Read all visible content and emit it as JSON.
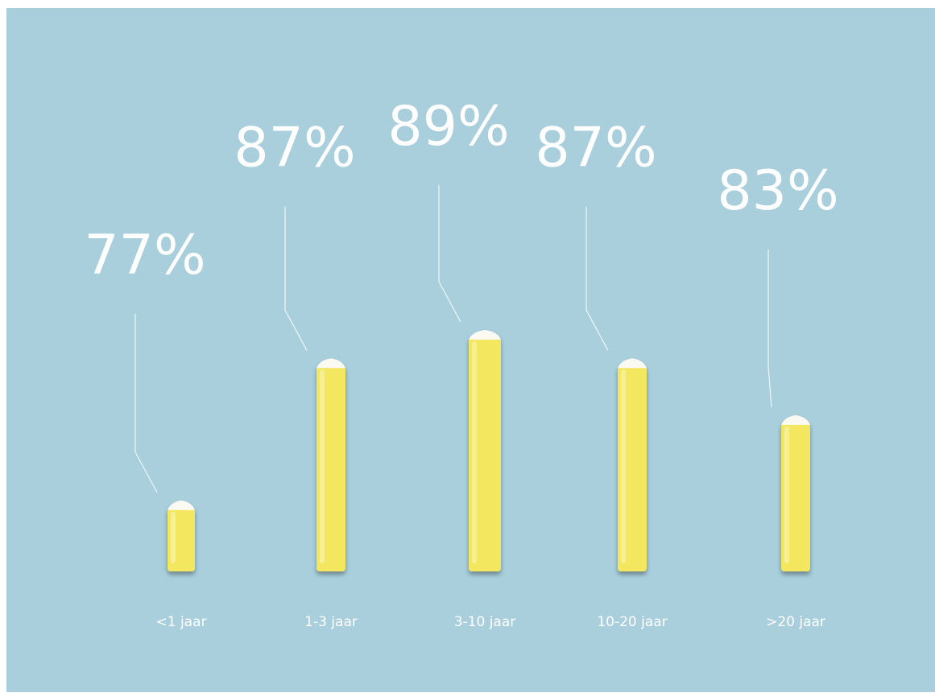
{
  "chart_data": {
    "type": "bar",
    "categories": [
      "<1 jaar",
      "1-3 jaar",
      "3-10 jaar",
      "10-20 jaar",
      ">20 jaar"
    ],
    "values": [
      77,
      87,
      89,
      87,
      83
    ],
    "value_labels": [
      "77%",
      "87%",
      "89%",
      "87%",
      "83%"
    ],
    "unit": "%",
    "title": "",
    "xlabel": "",
    "ylabel": "",
    "legend": "none",
    "grid": false,
    "colors": {
      "background": "#a9cfdd",
      "bar": "#f2e75e",
      "bar_highlight": "#f8f1a0",
      "bar_tip": "#fbfaf2",
      "text": "#ffffff",
      "leader_line": "#eef6f9"
    }
  }
}
